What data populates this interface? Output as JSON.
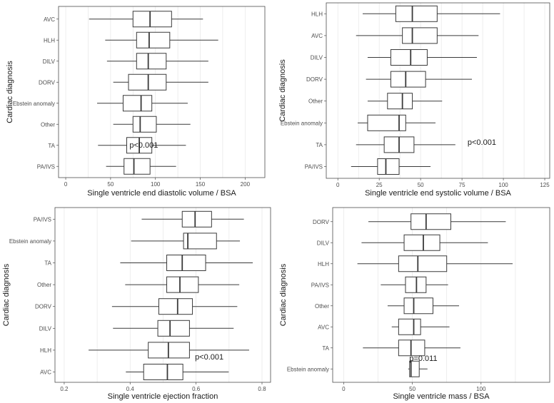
{
  "chart_data": [
    {
      "type": "boxplot",
      "orientation": "horizontal",
      "xlabel": "Single ventricle end diastolic volume / BSA",
      "ylabel": "Cardiac diagnosis",
      "xlim": [
        -8,
        222
      ],
      "xticks": [
        0,
        50,
        100,
        150,
        200
      ],
      "annotation": "p<0.001",
      "annotation_at": [
        87,
        207
      ],
      "categories": [
        "AVC",
        "HLH",
        "DILV",
        "DORV",
        "Ebstein anomaly",
        "Other",
        "TA",
        "PA/IVS"
      ],
      "boxes": [
        {
          "category": "AVC",
          "min": 26,
          "q1": 75,
          "median": 94,
          "q3": 118,
          "max": 153
        },
        {
          "category": "HLH",
          "min": 44,
          "q1": 79,
          "median": 93,
          "q3": 116,
          "max": 170
        },
        {
          "category": "DILV",
          "min": 46,
          "q1": 79,
          "median": 92,
          "q3": 112,
          "max": 159
        },
        {
          "category": "DORV",
          "min": 53,
          "q1": 70,
          "median": 92,
          "q3": 112,
          "max": 159
        },
        {
          "category": "Ebstein anomaly",
          "min": 35,
          "q1": 64,
          "median": 84,
          "q3": 96,
          "max": 136
        },
        {
          "category": "Other",
          "min": 53,
          "q1": 75,
          "median": 83,
          "q3": 101,
          "max": 139
        },
        {
          "category": "TA",
          "min": 36,
          "q1": 68,
          "median": 82,
          "q3": 96,
          "max": 134
        },
        {
          "category": "PA/IVS",
          "min": 45,
          "q1": 65,
          "median": 76,
          "q3": 94,
          "max": 123
        }
      ]
    },
    {
      "type": "boxplot",
      "orientation": "horizontal",
      "xlabel": "Single ventricle end systolic volume / BSA",
      "ylabel": "Cardiac diagnosis",
      "xlim": [
        -7,
        128
      ],
      "xticks": [
        0,
        25,
        50,
        75,
        100,
        125
      ],
      "annotation": "p<0.001",
      "annotation_at": [
        87,
        203
      ],
      "categories": [
        "HLH",
        "AVC",
        "DILV",
        "DORV",
        "Other",
        "Ebstein anomaly",
        "TA",
        "PA/IVS"
      ],
      "boxes": [
        {
          "category": "HLH",
          "min": 15,
          "q1": 35,
          "median": 45,
          "q3": 60,
          "max": 98
        },
        {
          "category": "AVC",
          "min": 11,
          "q1": 39,
          "median": 45,
          "q3": 60,
          "max": 85
        },
        {
          "category": "DILV",
          "min": 18,
          "q1": 32,
          "median": 44,
          "q3": 54,
          "max": 84
        },
        {
          "category": "DORV",
          "min": 17,
          "q1": 32,
          "median": 41,
          "q3": 53,
          "max": 81
        },
        {
          "category": "Other",
          "min": 18,
          "q1": 30,
          "median": 39,
          "q3": 45,
          "max": 63
        },
        {
          "category": "Ebstein anomaly",
          "min": 12,
          "q1": 18,
          "median": 37,
          "q3": 41,
          "max": 59
        },
        {
          "category": "TA",
          "min": 11,
          "q1": 28,
          "median": 37,
          "q3": 46,
          "max": 71
        },
        {
          "category": "PA/IVS",
          "min": 8,
          "q1": 24,
          "median": 29,
          "q3": 37,
          "max": 56
        }
      ]
    },
    {
      "type": "boxplot",
      "orientation": "horizontal",
      "xlabel": "Single ventricle ejection fraction",
      "ylabel": "Cardiac diagnosis",
      "xlim": [
        0.172,
        0.826
      ],
      "xticks": [
        0.2,
        0.4,
        0.6,
        0.8
      ],
      "annotation": "p<0.001",
      "annotation_at": [
        0.64,
        504
      ],
      "categories": [
        "PA/IVS",
        "Ebstein anomaly",
        "TA",
        "Other",
        "DORV",
        "DILV",
        "HLH",
        "AVC"
      ],
      "boxes": [
        {
          "category": "PA/IVS",
          "min": 0.435,
          "q1": 0.558,
          "median": 0.597,
          "q3": 0.647,
          "max": 0.745
        },
        {
          "category": "Ebstein anomaly",
          "min": 0.403,
          "q1": 0.562,
          "median": 0.575,
          "q3": 0.662,
          "max": 0.733
        },
        {
          "category": "TA",
          "min": 0.37,
          "q1": 0.511,
          "median": 0.558,
          "q3": 0.629,
          "max": 0.772
        },
        {
          "category": "Other",
          "min": 0.385,
          "q1": 0.511,
          "median": 0.551,
          "q3": 0.607,
          "max": 0.731
        },
        {
          "category": "DORV",
          "min": 0.345,
          "q1": 0.487,
          "median": 0.544,
          "q3": 0.589,
          "max": 0.725
        },
        {
          "category": "DILV",
          "min": 0.348,
          "q1": 0.484,
          "median": 0.521,
          "q3": 0.58,
          "max": 0.714
        },
        {
          "category": "HLH",
          "min": 0.274,
          "q1": 0.455,
          "median": 0.516,
          "q3": 0.58,
          "max": 0.761
        },
        {
          "category": "AVC",
          "min": 0.387,
          "q1": 0.441,
          "median": 0.513,
          "q3": 0.56,
          "max": 0.699
        }
      ]
    },
    {
      "type": "boxplot",
      "orientation": "horizontal",
      "xlabel": "Single ventricle mass / BSA",
      "ylabel": "Cardiac diagnosis",
      "xlim": [
        -8,
        150
      ],
      "xticks": [
        0,
        50,
        100
      ],
      "annotation": "p=0.011",
      "annotation_at": [
        58,
        506
      ],
      "categories": [
        "DORV",
        "DILV",
        "HLH",
        "PA/IVS",
        "Other",
        "AVC",
        "TA",
        "Ebstein anomaly"
      ],
      "boxes": [
        {
          "category": "DORV",
          "min": 18,
          "q1": 49,
          "median": 60,
          "q3": 78,
          "max": 118
        },
        {
          "category": "DILV",
          "min": 13,
          "q1": 44,
          "median": 58,
          "q3": 70,
          "max": 105
        },
        {
          "category": "HLH",
          "min": 10,
          "q1": 40,
          "median": 54,
          "q3": 75,
          "max": 123
        },
        {
          "category": "PA/IVS",
          "min": 27,
          "q1": 45,
          "median": 53,
          "q3": 60,
          "max": 76
        },
        {
          "category": "Other",
          "min": 32,
          "q1": 44,
          "median": 51,
          "q3": 65,
          "max": 84
        },
        {
          "category": "AVC",
          "min": 35,
          "q1": 40,
          "median": 51,
          "q3": 56,
          "max": 77
        },
        {
          "category": "TA",
          "min": 14,
          "q1": 40,
          "median": 49,
          "q3": 59,
          "max": 85
        },
        {
          "category": "Ebstein anomaly",
          "min": 47,
          "q1": 48,
          "median": 49,
          "q3": 55,
          "max": 61
        }
      ]
    }
  ]
}
